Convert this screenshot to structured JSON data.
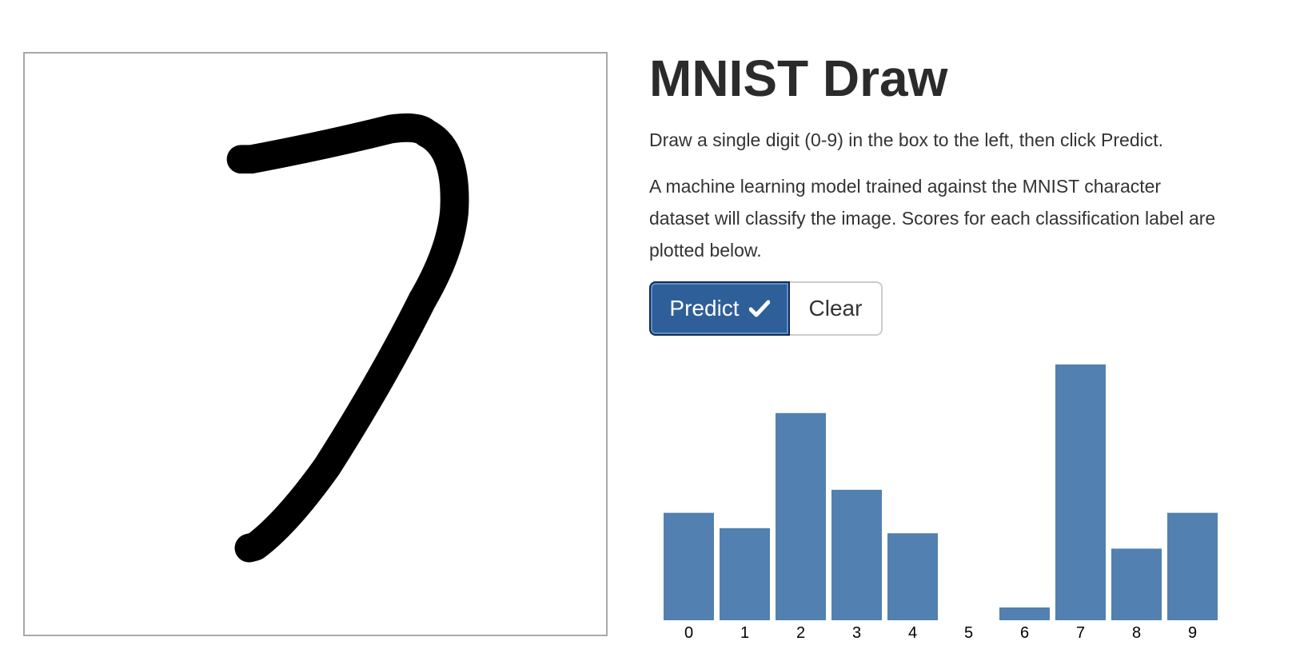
{
  "page": {
    "title": "MNIST Draw",
    "instruction": "Draw a single digit (0-9) in the box to the left, then click Predict.",
    "description": "A machine learning model trained against the MNIST character dataset will classify the image. Scores for each classification label are plotted below."
  },
  "buttons": {
    "predict_label": "Predict",
    "predict_icon": "check-icon",
    "clear_label": "Clear"
  },
  "canvas": {
    "drawn_digit_icon": "handwritten-seven-stroke",
    "stroke_color": "#000000"
  },
  "colors": {
    "accent": "#2f5f98",
    "bar": "#5280b0"
  },
  "chart_data": {
    "type": "bar",
    "categories": [
      "0",
      "1",
      "2",
      "3",
      "4",
      "5",
      "6",
      "7",
      "8",
      "9"
    ],
    "values": [
      0.42,
      0.36,
      0.81,
      0.51,
      0.34,
      0.0,
      0.05,
      1.0,
      0.28,
      0.42
    ],
    "title": "",
    "xlabel": "",
    "ylabel": "",
    "ylim": [
      0,
      1.0
    ],
    "grid": false,
    "legend": "none"
  }
}
